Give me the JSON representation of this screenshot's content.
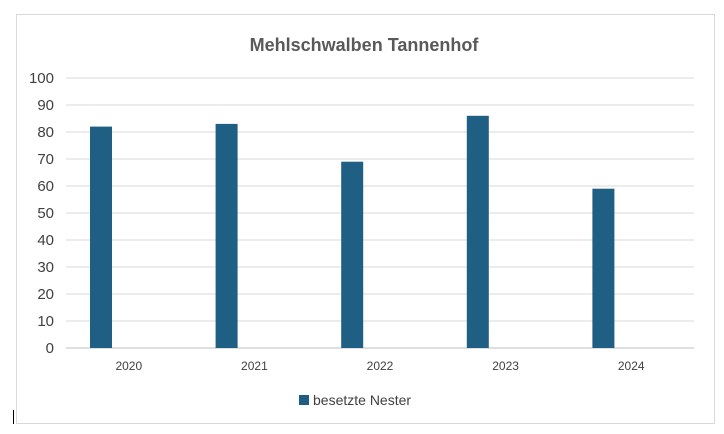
{
  "chart_data": {
    "type": "bar",
    "title": "Mehlschwalben Tannenhof",
    "categories": [
      "2020",
      "2021",
      "2022",
      "2023",
      "2024"
    ],
    "series": [
      {
        "name": "besetzte Nester",
        "color": "#1f5f84",
        "values": [
          82,
          83,
          69,
          86,
          59
        ]
      }
    ],
    "ylim": [
      0,
      100
    ],
    "yticks": [
      0,
      10,
      20,
      30,
      40,
      50,
      60,
      70,
      80,
      90,
      100
    ],
    "grid": true,
    "legend_position": "bottom"
  }
}
